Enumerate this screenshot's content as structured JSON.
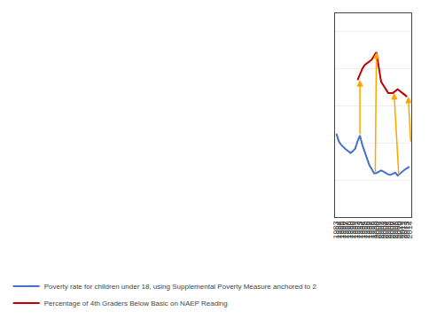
{
  "chart_data": {
    "type": "line",
    "series": [
      {
        "name": "Poverty rate for children under 18, using Supplemental Poverty Measure anchored to 2",
        "color": "#4472C4",
        "x": [
          1983,
          1984,
          1985,
          1986,
          1987,
          1988,
          1989,
          1990,
          1991,
          1992,
          1993,
          1994,
          1995,
          1996,
          1997,
          1998,
          1999,
          2000,
          2001,
          2002,
          2003,
          2004,
          2005,
          2006,
          2007,
          2008,
          2009,
          2010,
          2011,
          2012,
          2013,
          2014
        ],
        "values": [
          22.5,
          20.5,
          19.5,
          18.8,
          18.3,
          17.8,
          17.3,
          17.8,
          18.5,
          20.5,
          22.0,
          19.5,
          17.5,
          15.5,
          14.0,
          13.0,
          11.8,
          11.9,
          12.2,
          12.6,
          12.3,
          11.8,
          11.5,
          11.4,
          11.7,
          12.0,
          11.2,
          11.8,
          12.2,
          12.8,
          13.2,
          13.6
        ]
      },
      {
        "name": "Percentage of 4th Graders Below Basic on NAEP Reading",
        "color": "#C00000",
        "x": [
          1992,
          1994,
          1995,
          1996,
          1998,
          2000,
          2002,
          2003,
          2005,
          2007,
          2009,
          2011,
          2013
        ],
        "values": [
          37.0,
          40.0,
          41.0,
          41.5,
          42.5,
          44.5,
          36.5,
          35.5,
          33.5,
          33.5,
          34.5,
          33.5,
          32.5
        ]
      }
    ],
    "arrows": [
      {
        "from": [
          1993.0,
          22.0
        ],
        "to": [
          1993.0,
          37.0
        ],
        "color": "#FFA500"
      },
      {
        "from": [
          1999.5,
          11.85
        ],
        "to": [
          2000.0,
          44.5
        ],
        "color": "#FFA500"
      },
      {
        "from": [
          2009.5,
          11.2
        ],
        "to": [
          2007.5,
          33.5
        ],
        "color": "#FFA500"
      },
      {
        "from": [
          2014.6,
          20.0
        ],
        "to": [
          2013.5,
          32.5
        ],
        "color": "#FFA500"
      }
    ],
    "xlim": [
      1982.5,
      2014.8
    ],
    "xticks": [
      1983,
      1984,
      1985,
      1986,
      1987,
      1988,
      1989,
      1990,
      1991,
      1992,
      1993,
      1994,
      1995,
      1996,
      1997,
      1998,
      1999,
      2000,
      2001,
      2002,
      2003,
      2004,
      2005,
      2006,
      2007,
      2008,
      2009,
      2010,
      2011,
      2012,
      2013,
      2014
    ],
    "ylim": [
      0,
      55
    ],
    "yticks": [
      10,
      20,
      30,
      40,
      50
    ],
    "grid": true,
    "tick_labels": "x",
    "legend": "bottom"
  }
}
